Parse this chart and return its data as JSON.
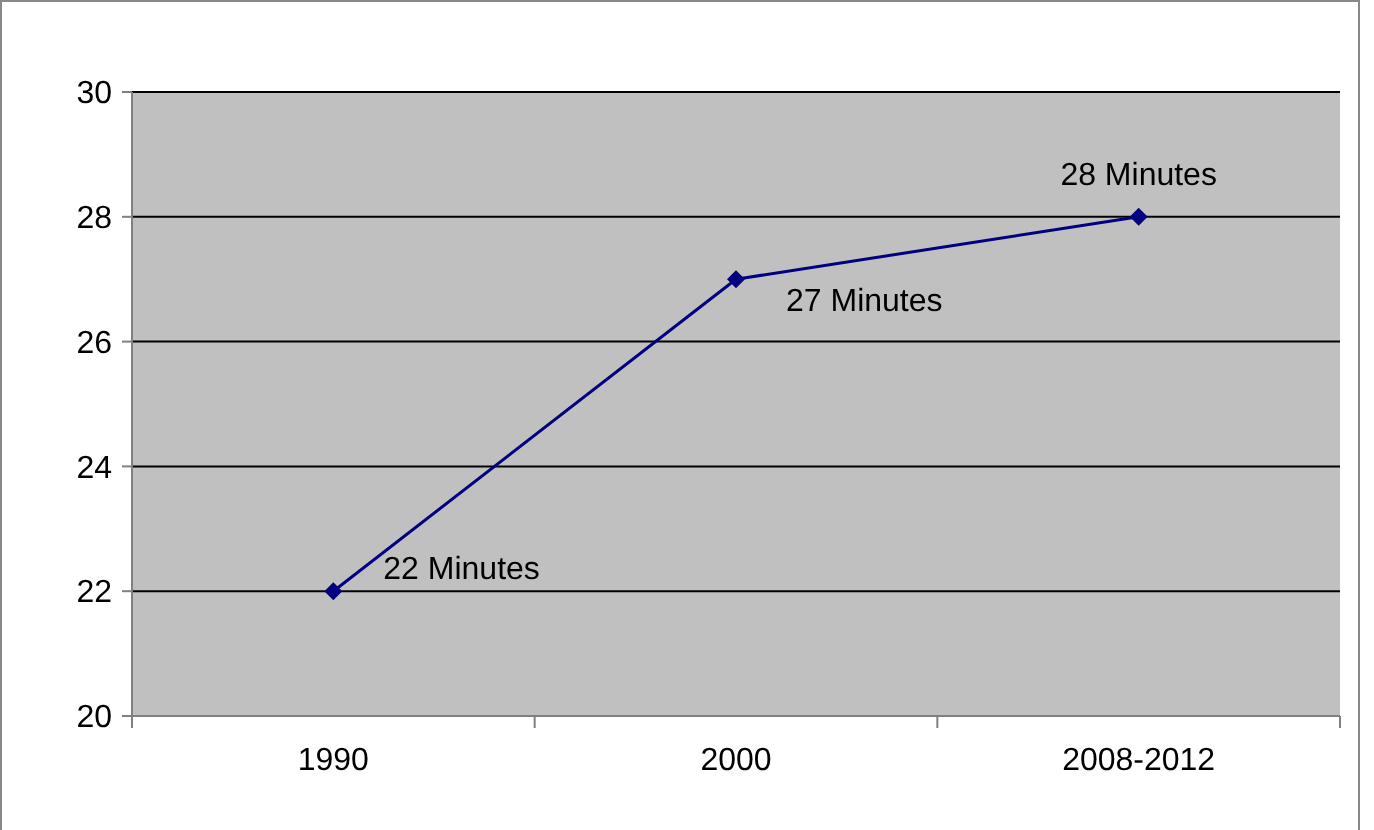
{
  "chart_data": {
    "type": "line",
    "categories": [
      "1990",
      "2000",
      "2008-2012"
    ],
    "series": [
      {
        "color": "#000080",
        "values": [
          22,
          27,
          28
        ],
        "value_labels": [
          "22 Minutes",
          "27 Minutes",
          "28 Minutes"
        ]
      }
    ],
    "ylim": [
      20,
      30
    ],
    "yticks": [
      20,
      22,
      24,
      26,
      28,
      30
    ],
    "grid": "y",
    "marker": "diamond",
    "line_style": "solid"
  }
}
